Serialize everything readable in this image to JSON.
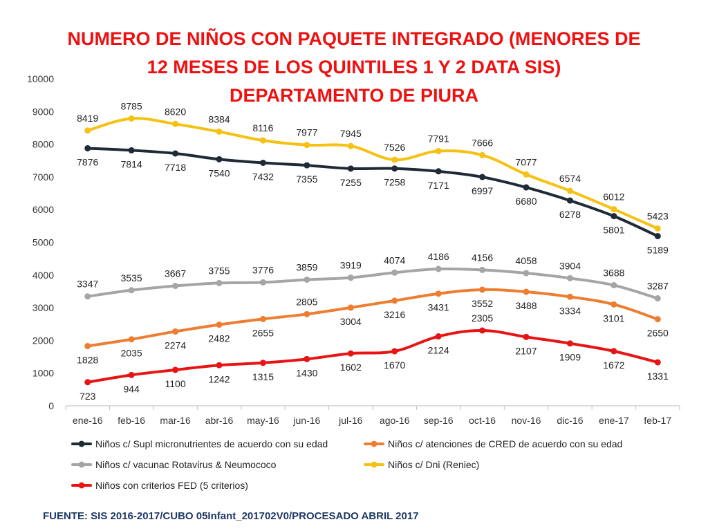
{
  "chart_data": {
    "type": "line",
    "title_lines": [
      "NUMERO DE NIÑOS CON PAQUETE INTEGRADO (MENORES DE",
      "12 MESES DE LOS QUINTILES 1 Y 2 DATA SIS)",
      "DEPARTAMENTO DE PIURA"
    ],
    "categories": [
      "ene-16",
      "feb-16",
      "mar-16",
      "abr-16",
      "may-16",
      "jun-16",
      "jul-16",
      "ago-16",
      "sep-16",
      "oct-16",
      "nov-16",
      "dic-16",
      "ene-17",
      "feb-17"
    ],
    "ylim": [
      0,
      10000
    ],
    "yticks": [
      0,
      1000,
      2000,
      3000,
      4000,
      5000,
      6000,
      7000,
      8000,
      9000,
      10000
    ],
    "grid": false,
    "legend_position": "bottom",
    "series": [
      {
        "name": "Niños c/ Supl micronutrientes de acuerdo con su edad",
        "color": "#1f2a36",
        "values": [
          7876,
          7814,
          7718,
          7540,
          7432,
          7355,
          7255,
          7258,
          7171,
          6997,
          6680,
          6278,
          5801,
          5189
        ]
      },
      {
        "name": "Niños c/ atenciones de CRED de acuerdo con su edad",
        "color": "#ed7d31",
        "values": [
          1828,
          2035,
          2274,
          2482,
          2655,
          2805,
          3004,
          3216,
          3431,
          3552,
          3488,
          3334,
          3101,
          2650
        ]
      },
      {
        "name": "Niños c/ vacunac Rotavirus & Neumococo",
        "color": "#a5a5a5",
        "values": [
          3347,
          3535,
          3667,
          3755,
          3776,
          3859,
          3919,
          4074,
          4186,
          4156,
          4058,
          3904,
          3688,
          3287
        ]
      },
      {
        "name": "Niños c/ Dni (Reniec)",
        "color": "#f5c113",
        "values": [
          8419,
          8785,
          8620,
          8384,
          8116,
          7977,
          7945,
          7526,
          7791,
          7666,
          7077,
          6574,
          6012,
          5423
        ]
      },
      {
        "name": "Niños con criterios FED (5 criterios)",
        "color": "#e81414",
        "values": [
          723,
          944,
          1100,
          1242,
          1315,
          1430,
          1602,
          1670,
          2124,
          2305,
          2107,
          1909,
          1672,
          1331
        ]
      }
    ],
    "source": "FUENTE: SIS 2016-2017/CUBO 05Infant_201702V0/PROCESADO ABRIL 2017"
  }
}
